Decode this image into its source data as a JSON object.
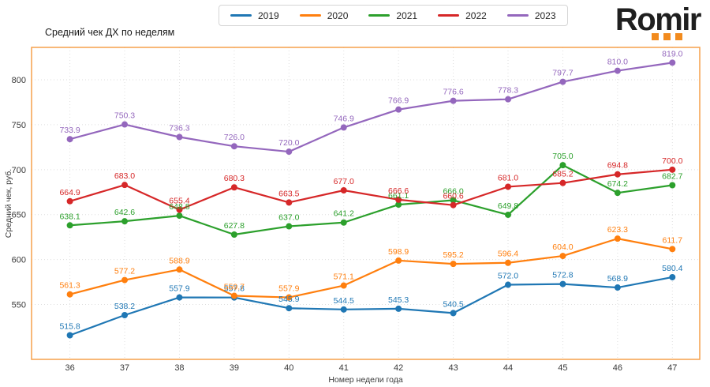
{
  "header": {
    "logo": {
      "text": "Romir",
      "text_color": "#1f1f1f",
      "accent_color": "#f28b1e",
      "dot_count": 3
    }
  },
  "chart_data": {
    "type": "line",
    "title": "Средний чек ДХ по неделям",
    "xlabel": "Номер недели года",
    "ylabel": "Средний чек, руб.",
    "x": [
      36,
      37,
      38,
      39,
      40,
      41,
      42,
      43,
      44,
      45,
      46,
      47
    ],
    "yticks": [
      550,
      600,
      650,
      700,
      750,
      800
    ],
    "xlim": [
      35.3,
      47.5
    ],
    "ylim": [
      489,
      836
    ],
    "grid": true,
    "grid_color": "#dedede",
    "frame_color": "#f5a04b",
    "legend_position": "top-center",
    "marker": "circle",
    "data_labels": true,
    "series": [
      {
        "name": "2019",
        "color": "#1f77b4",
        "values": [
          515.8,
          538.2,
          557.9,
          557.8,
          545.9,
          544.5,
          545.3,
          540.5,
          572.0,
          572.8,
          568.9,
          580.4
        ]
      },
      {
        "name": "2020",
        "color": "#ff7f0e",
        "values": [
          561.3,
          577.2,
          588.9,
          559.7,
          557.9,
          571.1,
          598.9,
          595.2,
          596.4,
          604.0,
          623.3,
          611.7
        ]
      },
      {
        "name": "2021",
        "color": "#2ca02c",
        "values": [
          638.1,
          642.6,
          648.8,
          627.8,
          637.0,
          641.2,
          661.1,
          666.0,
          649.8,
          705.0,
          674.2,
          682.7
        ]
      },
      {
        "name": "2022",
        "color": "#d62728",
        "values": [
          664.9,
          683.0,
          655.4,
          680.3,
          663.5,
          677.0,
          666.6,
          660.6,
          681.0,
          685.2,
          694.8,
          700.0
        ]
      },
      {
        "name": "2023",
        "color": "#9467bd",
        "values": [
          733.9,
          750.3,
          736.3,
          726.0,
          720.0,
          746.9,
          766.9,
          776.6,
          778.3,
          797.7,
          810.0,
          819.0
        ]
      }
    ]
  }
}
